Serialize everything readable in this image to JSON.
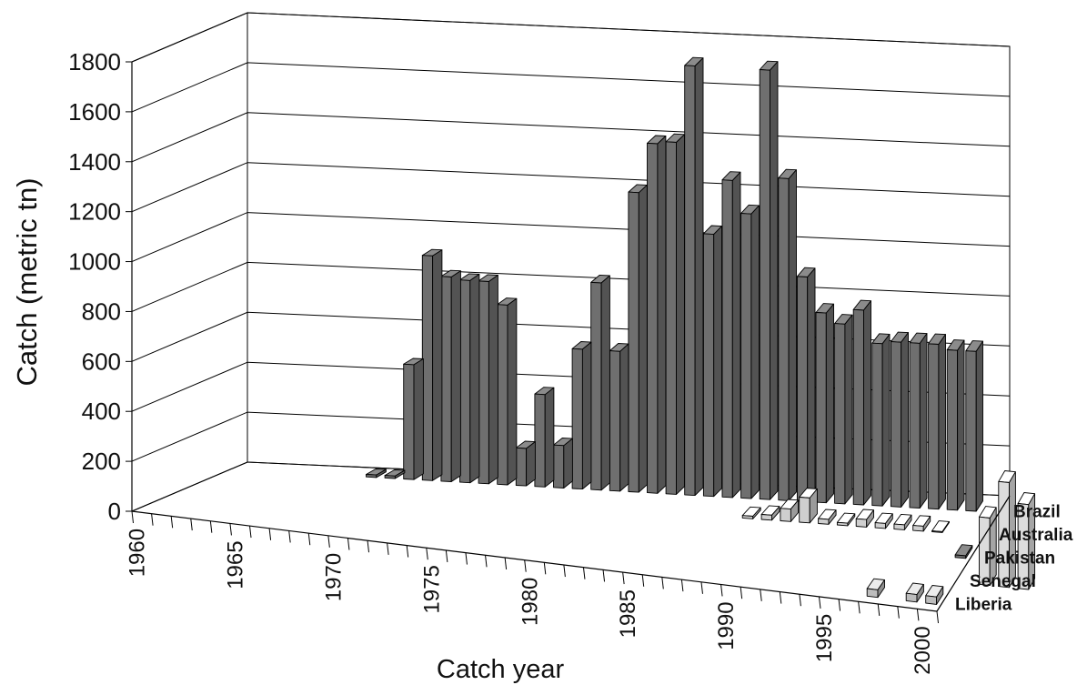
{
  "chart_data": {
    "type": "bar",
    "style": "3d-clustered",
    "xlabel": "Catch year",
    "ylabel": "Catch (metric tn)",
    "ylim": [
      0,
      1800
    ],
    "yticks": [
      "0",
      "200",
      "400",
      "600",
      "800",
      "1000",
      "1200",
      "1400",
      "1600",
      "1800"
    ],
    "xlim": [
      1960,
      2001
    ],
    "xtick_labels": [
      "1960",
      "1965",
      "1970",
      "1975",
      "1980",
      "1985",
      "1990",
      "1995",
      "2000"
    ],
    "grid": true,
    "depth_labels": [
      "Brazil",
      "Australia",
      "Pakistan",
      "Senegal",
      "Liberia"
    ],
    "series": [
      {
        "name": "Brazil",
        "color": "#6f6f6f",
        "x": [
          1967,
          1968,
          1969,
          1970,
          1971,
          1972,
          1973,
          1974,
          1975,
          1976,
          1977,
          1978,
          1979,
          1980,
          1981,
          1982,
          1983,
          1984,
          1985,
          1986,
          1987,
          1988,
          1989,
          1990,
          1991,
          1992,
          1993,
          1994,
          1995,
          1996,
          1997,
          1998,
          1999
        ],
        "values": [
          10,
          10,
          460,
          900,
          820,
          810,
          810,
          720,
          150,
          370,
          170,
          560,
          830,
          560,
          1200,
          1400,
          1410,
          1720,
          1050,
          1270,
          1140,
          1720,
          1290,
          900,
          760,
          720,
          780,
          650,
          660,
          660,
          660,
          640,
          640
        ]
      },
      {
        "name": "Australia",
        "color": "#cfcfcf",
        "x": [
          1988,
          1989,
          1990,
          1991,
          1992,
          1993,
          1994,
          1995,
          1996,
          1997,
          1998
        ],
        "values": [
          10,
          20,
          50,
          100,
          20,
          10,
          30,
          20,
          20,
          20,
          0
        ]
      },
      {
        "name": "Pakistan",
        "color": "#6f6f6f",
        "x": [
          2000
        ],
        "values": [
          10
        ]
      },
      {
        "name": "Senegal",
        "color": "#dcdcdc",
        "x": [
          2002,
          2003,
          2004
        ],
        "values": [
          270,
          420,
          340
        ]
      },
      {
        "name": "Liberia",
        "color": "#bdbdbd",
        "x": [
          1997,
          1999,
          2000
        ],
        "values": [
          30,
          30,
          30
        ]
      }
    ]
  }
}
